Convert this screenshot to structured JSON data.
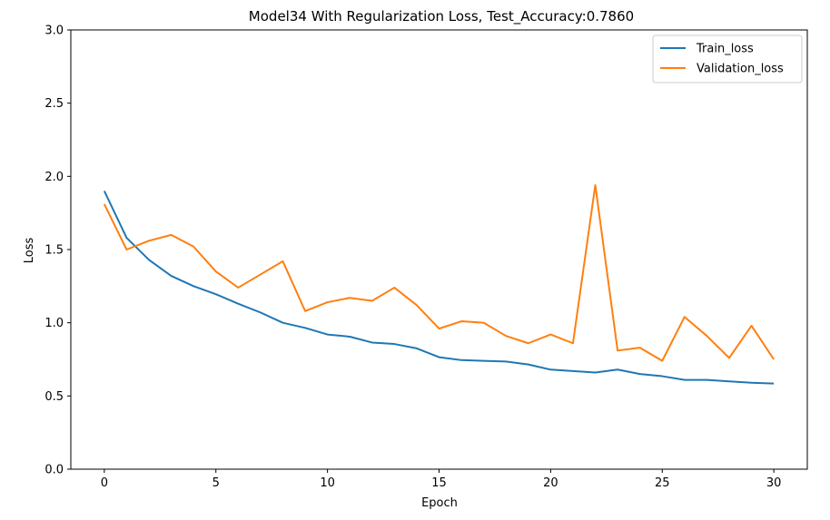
{
  "chart_data": {
    "type": "line",
    "title": "Model34 With Regularization Loss, Test_Accuracy:0.7860",
    "xlabel": "Epoch",
    "ylabel": "Loss",
    "xlim": [
      -1.5,
      31.5
    ],
    "ylim": [
      0.0,
      3.0
    ],
    "xticks": [
      0,
      5,
      10,
      15,
      20,
      25,
      30
    ],
    "xtick_labels": [
      "0",
      "5",
      "10",
      "15",
      "20",
      "25",
      "30"
    ],
    "yticks": [
      0.0,
      0.5,
      1.0,
      1.5,
      2.0,
      2.5,
      3.0
    ],
    "ytick_labels": [
      "0.0",
      "0.5",
      "1.0",
      "1.5",
      "2.0",
      "2.5",
      "3.0"
    ],
    "grid": false,
    "legend_position": "top-right",
    "x": [
      0,
      1,
      2,
      3,
      4,
      5,
      6,
      7,
      8,
      9,
      10,
      11,
      12,
      13,
      14,
      15,
      16,
      17,
      18,
      19,
      20,
      21,
      22,
      23,
      24,
      25,
      26,
      27,
      28,
      29,
      30
    ],
    "series": [
      {
        "name": "Train_loss",
        "color": "#1f77b4",
        "values": [
          1.9,
          1.58,
          1.43,
          1.32,
          1.25,
          1.195,
          1.13,
          1.07,
          1.0,
          0.965,
          0.92,
          0.905,
          0.865,
          0.855,
          0.825,
          0.765,
          0.745,
          0.74,
          0.735,
          0.715,
          0.68,
          0.67,
          0.66,
          0.68,
          0.65,
          0.635,
          0.61,
          0.61,
          0.6,
          0.59,
          0.585
        ]
      },
      {
        "name": "Validation_loss",
        "color": "#ff7f0e",
        "values": [
          1.81,
          1.5,
          1.56,
          1.6,
          1.52,
          1.35,
          1.24,
          1.33,
          1.42,
          1.08,
          1.14,
          1.17,
          1.15,
          1.24,
          1.12,
          0.96,
          1.01,
          1.0,
          0.91,
          0.86,
          0.92,
          0.86,
          1.94,
          0.81,
          0.83,
          0.74,
          1.04,
          0.91,
          0.76,
          0.98,
          0.75
        ]
      }
    ]
  }
}
